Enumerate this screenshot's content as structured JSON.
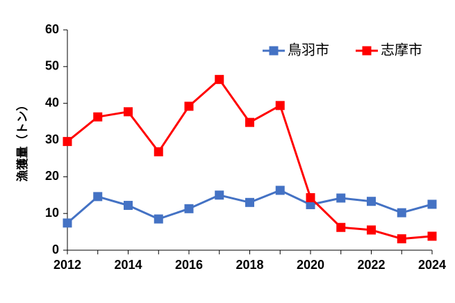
{
  "chart_data": {
    "type": "line",
    "x": [
      2012,
      2013,
      2014,
      2015,
      2016,
      2017,
      2018,
      2019,
      2020,
      2021,
      2022,
      2023,
      2024
    ],
    "x_tick_labels": [
      "2012",
      "2014",
      "2016",
      "2018",
      "2020",
      "2022",
      "2024"
    ],
    "y_tick_labels": [
      "0",
      "10",
      "20",
      "30",
      "40",
      "50",
      "60"
    ],
    "ylabel": "漁獲量（トン）",
    "xlabel": "",
    "ylim": [
      0,
      60
    ],
    "xlim": [
      2012,
      2024
    ],
    "grid": false,
    "legend_position": "top-right",
    "series": [
      {
        "name": "鳥羽市",
        "color": "#4472C4",
        "marker": "square",
        "values": [
          7.4,
          14.6,
          12.2,
          8.5,
          11.3,
          15.0,
          13.0,
          16.3,
          12.4,
          14.2,
          13.3,
          10.2,
          12.5
        ]
      },
      {
        "name": "志摩市",
        "color": "#FF0000",
        "marker": "square",
        "values": [
          29.6,
          36.3,
          37.7,
          26.8,
          39.2,
          46.5,
          34.8,
          39.4,
          14.3,
          6.2,
          5.5,
          3.1,
          3.8
        ]
      }
    ]
  }
}
